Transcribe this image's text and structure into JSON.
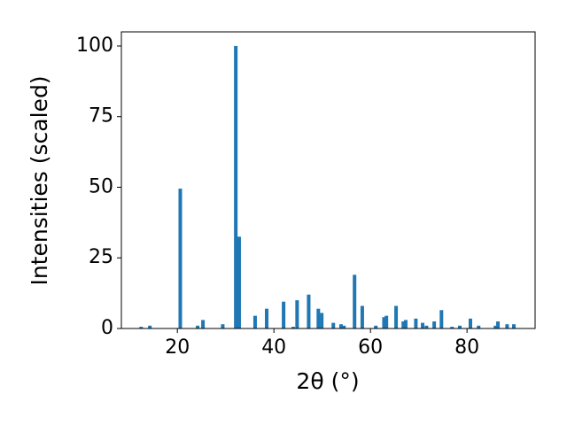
{
  "chart_data": {
    "type": "bar",
    "xlabel": "2θ (°)",
    "ylabel": "Intensities (scaled)",
    "x": [
      12.5,
      14.3,
      20.6,
      24.2,
      25.3,
      29.4,
      32.1,
      32.8,
      36.1,
      38.5,
      42.0,
      44.0,
      44.8,
      47.2,
      49.2,
      49.9,
      52.3,
      53.9,
      54.5,
      56.7,
      58.3,
      61.1,
      62.8,
      63.3,
      65.3,
      66.8,
      67.3,
      69.4,
      70.8,
      71.6,
      73.2,
      74.7,
      76.9,
      78.5,
      80.7,
      82.4,
      85.9,
      86.4,
      88.3,
      89.7
    ],
    "values": [
      0.6,
      1,
      49.5,
      1,
      3,
      1.5,
      100,
      32.5,
      4.5,
      7,
      9.5,
      0.6,
      10,
      12,
      7,
      5.5,
      2,
      1.5,
      1,
      19,
      8,
      1,
      4,
      4.5,
      8,
      2.5,
      3,
      3.5,
      2,
      1,
      2.5,
      6.5,
      0.6,
      1,
      3.5,
      1,
      1,
      2.5,
      1.5,
      1.5
    ],
    "color": "#1f77b4",
    "xlim": [
      8.4,
      94.1
    ],
    "xticks": [
      20,
      40,
      60,
      80
    ],
    "ylim": [
      0,
      105
    ],
    "yticks": [
      0,
      25,
      50,
      75,
      100
    ]
  }
}
